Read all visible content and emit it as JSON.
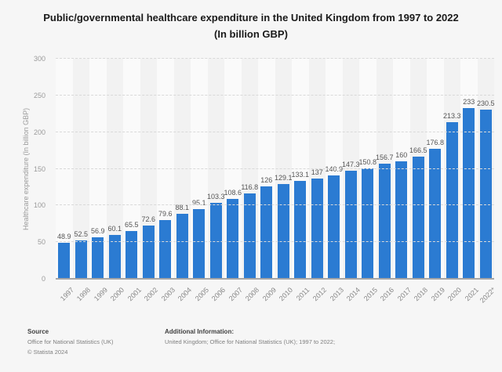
{
  "title": {
    "line1": "Public/governmental healthcare expenditure in the United Kingdom from 1997 to 2022",
    "line2": "(In billion GBP)"
  },
  "chart_data": {
    "type": "bar",
    "title": "Public/governmental healthcare expenditure in the United Kingdom from 1997 to 2022 (In billion GBP)",
    "categories": [
      "1997",
      "1998",
      "1999",
      "2000",
      "2001",
      "2002",
      "2003",
      "2004",
      "2005",
      "2006",
      "2007",
      "2008",
      "2009",
      "2010",
      "2011",
      "2012",
      "2013",
      "2014",
      "2015",
      "2016",
      "2017",
      "2018",
      "2019",
      "2020",
      "2021",
      "2022*"
    ],
    "values": [
      48.9,
      52.5,
      56.9,
      60.1,
      65.5,
      72.6,
      79.6,
      88.1,
      95.1,
      103.3,
      108.6,
      116.8,
      126,
      129.1,
      133.1,
      137,
      140.9,
      147.3,
      150.8,
      156.7,
      160,
      166.5,
      176.8,
      213.3,
      233,
      230.5
    ],
    "xlabel": "",
    "ylabel": "Healthcare expenditure (In billion GBP)",
    "ylim": [
      0,
      300
    ],
    "yticks": [
      0,
      50,
      100,
      150,
      200,
      250,
      300
    ],
    "bar_color": "#2b7bd2",
    "grid": "horizontal-dashed",
    "legend_position": "none",
    "value_labels": "above-bars"
  },
  "footer": {
    "source_label": "Source",
    "source_line1": "Office for National Statistics (UK)",
    "source_line2": "© Statista 2024",
    "additional_label": "Additional Information:",
    "additional_line1": "United Kingdom; Office for National Statistics (UK); 1997 to 2022;"
  }
}
